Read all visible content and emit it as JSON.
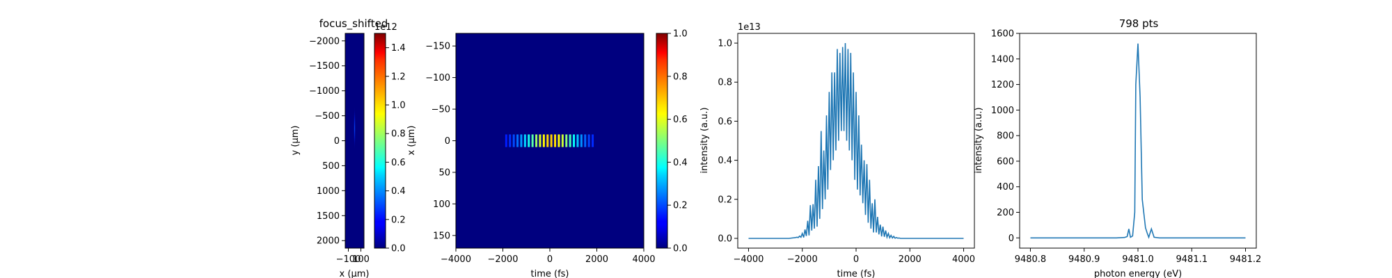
{
  "chart_data": [
    {
      "id": "xy",
      "type": "heatmap",
      "title": "focus_shifted",
      "xlabel": "x (μm)",
      "ylabel": "y (μm)",
      "xlim": [
        -150,
        150
      ],
      "ylim": [
        2150,
        -2150
      ],
      "xticks": [
        -100,
        100
      ],
      "xtick_labels": [
        "−100",
        "100"
      ],
      "yticks": [
        -2000,
        -1500,
        -1000,
        -500,
        0,
        500,
        1000,
        1500,
        2000
      ],
      "ytick_labels": [
        "−2000",
        "−1500",
        "−1000",
        "−500",
        "0",
        "500",
        "1000",
        "1500",
        "2000"
      ],
      "colorscale": "jet",
      "spot": {
        "x_center": 0,
        "y_center": -250,
        "x_halfwidth": 15,
        "y_halfwidth": 450,
        "peak": 0.2
      },
      "colorbar": {
        "range": [
          0,
          1.5
        ],
        "ticks": [
          0,
          0.2,
          0.4,
          0.6,
          0.8,
          1.0,
          1.2,
          1.4
        ],
        "tick_labels": [
          "0.0",
          "0.2",
          "0.4",
          "0.6",
          "0.8",
          "1.0",
          "1.2",
          "1.4"
        ],
        "exponent": "1e12"
      }
    },
    {
      "id": "tx",
      "type": "heatmap",
      "title": "",
      "xlabel": "time (fs)",
      "ylabel": "x (μm)",
      "xlim": [
        -4000,
        4000
      ],
      "ylim": [
        170,
        -170
      ],
      "xticks": [
        -4000,
        -2000,
        0,
        2000,
        4000
      ],
      "xtick_labels": [
        "−4000",
        "−2000",
        "0",
        "2000",
        "4000"
      ],
      "yticks": [
        -150,
        -100,
        -50,
        0,
        50,
        100,
        150
      ],
      "ytick_labels": [
        "−150",
        "−100",
        "−50",
        "0",
        "50",
        "100",
        "150"
      ],
      "colorscale": "jet",
      "stripes": {
        "x_start": -1900,
        "x_end": 1900,
        "period": 160,
        "y_halfwidth": 10,
        "envelope_sigma": 800
      },
      "colorbar": {
        "range": [
          0,
          1.0
        ],
        "ticks": [
          0,
          0.2,
          0.4,
          0.6,
          0.8,
          1.0
        ],
        "tick_labels": [
          "0.0",
          "0.2",
          "0.4",
          "0.6",
          "0.8",
          "1.0"
        ],
        "exponent": ""
      }
    },
    {
      "id": "temporal",
      "type": "line",
      "title": "",
      "xlabel": "time (fs)",
      "ylabel": "intensity (a.u.)",
      "xlim": [
        -4400,
        4400
      ],
      "ylim": [
        -0.05,
        1.05
      ],
      "xticks": [
        -4000,
        -2000,
        0,
        2000,
        4000
      ],
      "xtick_labels": [
        "−4000",
        "−2000",
        "0",
        "2000",
        "4000"
      ],
      "yticks": [
        0,
        0.2,
        0.4,
        0.6,
        0.8,
        1.0
      ],
      "ytick_labels": [
        "0.0",
        "0.2",
        "0.4",
        "0.6",
        "0.8",
        "1.0"
      ],
      "exponent": "1e13",
      "color": "#1f77b4",
      "series": [
        {
          "x": [
            -4000,
            -2500,
            -2300,
            -2250,
            -2200,
            -2150,
            -2100,
            -2050,
            -2000,
            -1950,
            -1900,
            -1850,
            -1800,
            -1750,
            -1700,
            -1650,
            -1600,
            -1550,
            -1500,
            -1450,
            -1400,
            -1350,
            -1300,
            -1250,
            -1200,
            -1150,
            -1100,
            -1050,
            -1000,
            -950,
            -900,
            -850,
            -800,
            -750,
            -700,
            -650,
            -600,
            -550,
            -500,
            -450,
            -400,
            -350,
            -300,
            -250,
            -200,
            -150,
            -100,
            -50,
            0,
            50,
            100,
            150,
            200,
            250,
            300,
            350,
            400,
            450,
            500,
            550,
            600,
            650,
            700,
            750,
            800,
            850,
            900,
            950,
            1000,
            1050,
            1100,
            1150,
            1200,
            1250,
            1300,
            1350,
            1400,
            1450,
            1500,
            1550,
            1600,
            1650,
            1700,
            1750,
            1800,
            1850,
            1900,
            1950,
            2000,
            2050,
            2100,
            2150,
            2200,
            2250,
            2300,
            2500,
            4000
          ],
          "y": [
            0,
            0,
            0.003,
            0.004,
            0.006,
            0.004,
            0.012,
            0.006,
            0.025,
            0.005,
            0.045,
            0.012,
            0.09,
            0.015,
            0.17,
            0.04,
            0.175,
            0.05,
            0.3,
            0.06,
            0.37,
            0.1,
            0.55,
            0.15,
            0.45,
            0.2,
            0.63,
            0.25,
            0.75,
            0.35,
            0.85,
            0.4,
            0.85,
            0.45,
            0.97,
            0.5,
            0.95,
            0.55,
            0.98,
            0.55,
            1.0,
            0.5,
            0.97,
            0.45,
            0.95,
            0.4,
            0.85,
            0.3,
            0.75,
            0.25,
            0.63,
            0.22,
            0.48,
            0.18,
            0.4,
            0.12,
            0.38,
            0.08,
            0.3,
            0.05,
            0.18,
            0.03,
            0.2,
            0.03,
            0.11,
            0.02,
            0.07,
            0.01,
            0.06,
            0.008,
            0.04,
            0.006,
            0.025,
            0.003,
            0.015,
            0.002,
            0.01,
            0.001,
            0.004,
            0.001,
            0.002,
            0,
            0,
            0,
            0,
            0,
            0,
            0,
            0,
            0,
            0,
            0,
            0,
            0,
            0,
            0,
            0
          ]
        }
      ]
    },
    {
      "id": "spectrum",
      "type": "line",
      "title": "798 pts",
      "xlabel": "photon energy (eV)",
      "ylabel": "intensity (a.u.)",
      "xlim": [
        9480.78,
        9481.22
      ],
      "ylim": [
        -80,
        1600
      ],
      "xticks": [
        9480.8,
        9480.9,
        9481.0,
        9481.1,
        9481.2
      ],
      "xtick_labels": [
        "9480.8",
        "9480.9",
        "9481.0",
        "9481.1",
        "9481.2"
      ],
      "yticks": [
        0,
        200,
        400,
        600,
        800,
        1000,
        1200,
        1400,
        1600
      ],
      "ytick_labels": [
        "0",
        "200",
        "400",
        "600",
        "800",
        "1000",
        "1200",
        "1400",
        "1600"
      ],
      "exponent": "",
      "color": "#1f77b4",
      "series": [
        {
          "x": [
            9480.8,
            9480.96,
            9480.975,
            9480.98,
            9480.983,
            9480.986,
            9480.99,
            9480.994,
            9480.996,
            9481.0,
            9481.004,
            9481.008,
            9481.014,
            9481.017,
            9481.02,
            9481.025,
            9481.03,
            9481.04,
            9481.2
          ],
          "y": [
            0,
            0,
            3,
            10,
            70,
            5,
            15,
            200,
            1200,
            1520,
            1100,
            300,
            80,
            40,
            5,
            70,
            5,
            0,
            0
          ]
        }
      ]
    }
  ]
}
